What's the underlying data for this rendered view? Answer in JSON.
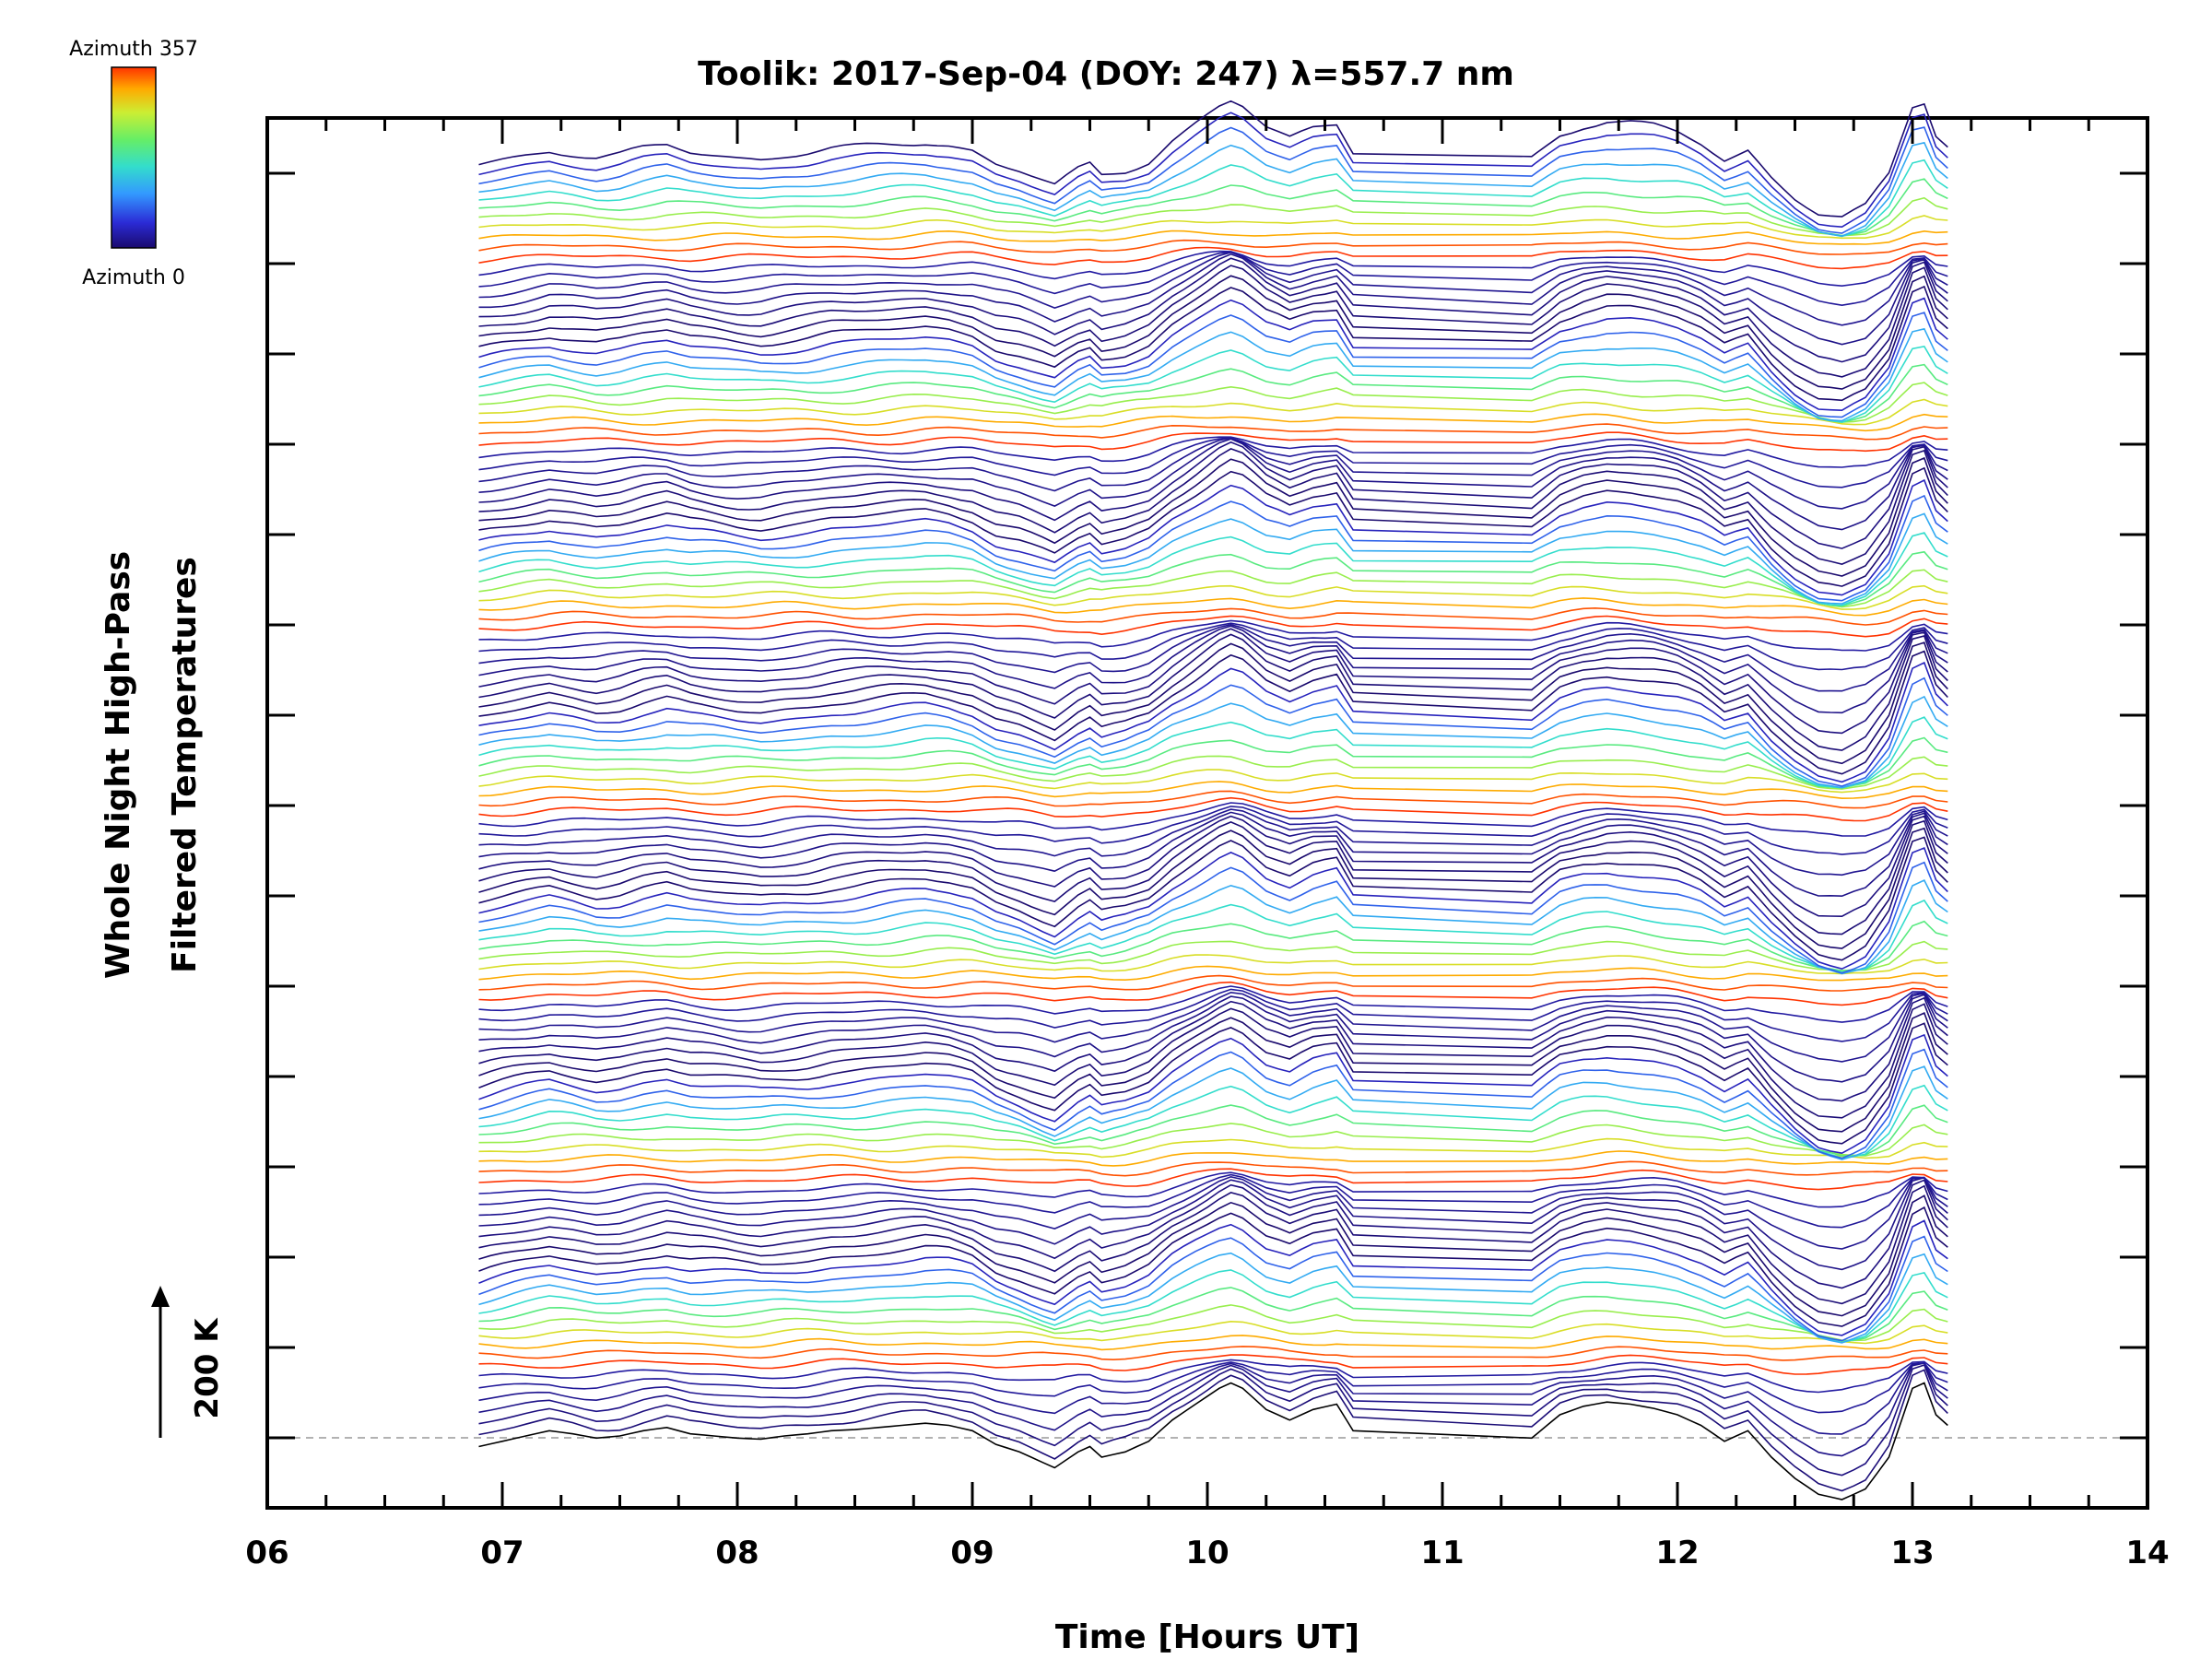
{
  "chart_data": {
    "type": "line",
    "title": "Toolik: 2017-Sep-04 (DOY: 247) λ=557.7 nm",
    "xlabel": "Time [Hours UT]",
    "ylabel_line1": "Whole Night High-Pass",
    "ylabel_line2": "Filtered Temperatures",
    "xlim": [
      6,
      14
    ],
    "x_ticks": [
      "06",
      "07",
      "08",
      "09",
      "10",
      "11",
      "12",
      "13",
      "14"
    ],
    "scale_bar_label": "200 K",
    "colorbar": {
      "top_label": "Azimuth 357",
      "bottom_label": "Azimuth 0",
      "colormap": [
        "#1a0a6e",
        "#2b2bd6",
        "#3399ff",
        "#33ddcc",
        "#66ee66",
        "#ccee33",
        "#ffaa00",
        "#ff3300"
      ]
    },
    "stacked_profiles": 7,
    "lines_per_profile": 18,
    "time_start": 6.9,
    "time_end": 13.15,
    "gap_start": 10.62,
    "gap_end": 11.38,
    "base_profile": {
      "x": [
        6.9,
        7.0,
        7.1,
        7.2,
        7.3,
        7.4,
        7.5,
        7.6,
        7.7,
        7.8,
        7.9,
        8.0,
        8.1,
        8.2,
        8.3,
        8.4,
        8.5,
        8.6,
        8.7,
        8.8,
        8.9,
        9.0,
        9.1,
        9.2,
        9.3,
        9.35,
        9.45,
        9.5,
        9.55,
        9.65,
        9.75,
        9.85,
        9.95,
        10.05,
        10.1,
        10.15,
        10.25,
        10.35,
        10.45,
        10.55,
        10.62,
        11.38,
        11.5,
        11.6,
        11.7,
        11.8,
        11.9,
        12.0,
        12.1,
        12.2,
        12.3,
        12.4,
        12.5,
        12.6,
        12.7,
        12.8,
        12.9,
        13.0,
        13.05,
        13.1,
        13.15
      ],
      "y": [
        -10,
        -5,
        0,
        5,
        2,
        -2,
        0,
        5,
        8,
        2,
        0,
        -2,
        -3,
        0,
        2,
        5,
        6,
        8,
        10,
        12,
        10,
        5,
        -8,
        -15,
        -25,
        -30,
        -15,
        -10,
        -20,
        -15,
        -5,
        15,
        30,
        45,
        50,
        45,
        25,
        15,
        25,
        30,
        5,
        -2,
        20,
        28,
        32,
        30,
        26,
        20,
        10,
        -5,
        5,
        -20,
        -40,
        -55,
        -60,
        -50,
        -20,
        45,
        50,
        20,
        10
      ]
    }
  }
}
